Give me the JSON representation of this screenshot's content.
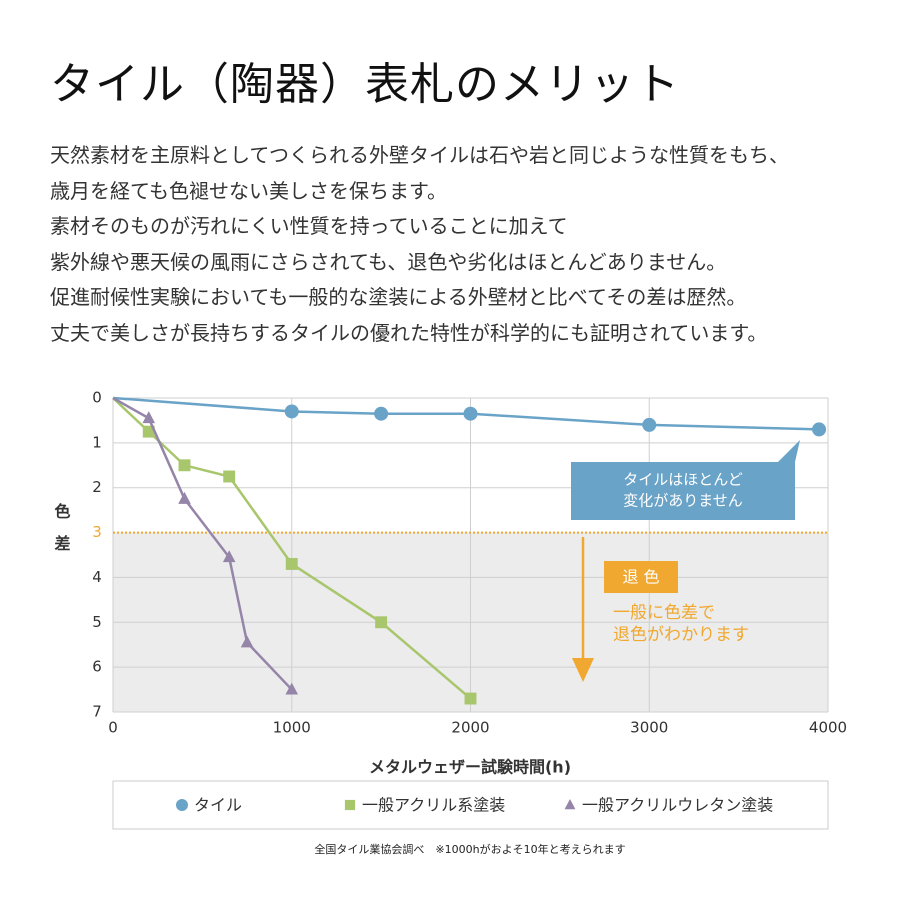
{
  "header": {
    "title": "タイル（陶器）表札のメリット",
    "paragraph": [
      "天然素材を主原料としてつくられる外壁タイルは石や岩と同じような性質をもち、",
      "歳月を経ても色褪せない美しさを保ちます。",
      "素材そのものが汚れにくい性質を持っていることに加えて",
      "紫外線や悪天候の風雨にさらされても、退色や劣化はほとんどありません。",
      "促進耐候性実験においても一般的な塗装による外壁材と比べてその差は歴然。",
      "丈夫で美しさが長持ちするタイルの優れた特性が科学的にも証明されています。"
    ]
  },
  "chart_data": {
    "type": "line",
    "xlabel": "メタルウェザー試験時間(h)",
    "ylabel": "色差",
    "xlim": [
      0,
      4000
    ],
    "xticks": [
      0,
      1000,
      2000,
      3000,
      4000
    ],
    "ylim": [
      0,
      7
    ],
    "yticks": [
      0,
      1,
      2,
      3,
      4,
      5,
      6,
      7
    ],
    "y_inverted": true,
    "grid": true,
    "threshold": 3,
    "threshold_color": "#f0a830",
    "series": [
      {
        "name": "タイル",
        "color": "#6aa3c8",
        "marker": "circle",
        "x": [
          0,
          1000,
          1500,
          2000,
          3000,
          3950
        ],
        "values": [
          0,
          0.3,
          0.35,
          0.35,
          0.6,
          0.7
        ]
      },
      {
        "name": "一般アクリル系塗装",
        "color": "#a8c66c",
        "marker": "square",
        "x": [
          0,
          200,
          400,
          650,
          1000,
          1500,
          2000
        ],
        "values": [
          0,
          0.75,
          1.5,
          1.75,
          3.7,
          5.0,
          6.7
        ]
      },
      {
        "name": "一般アクリルウレタン塗装",
        "color": "#9585a8",
        "marker": "triangle",
        "x": [
          0,
          200,
          400,
          650,
          750,
          1000
        ],
        "values": [
          0,
          0.45,
          2.25,
          3.55,
          5.45,
          6.5
        ]
      }
    ],
    "annotations": {
      "tile_note": [
        "タイルはほとんど",
        "変化がありません"
      ],
      "fade_label": "退 色",
      "fade_note": [
        "一般に色差で",
        "退色がわかります"
      ]
    },
    "legend_position": "bottom",
    "source": "全国タイル業協会調べ　※1000hがおよそ10年と考えられます"
  }
}
